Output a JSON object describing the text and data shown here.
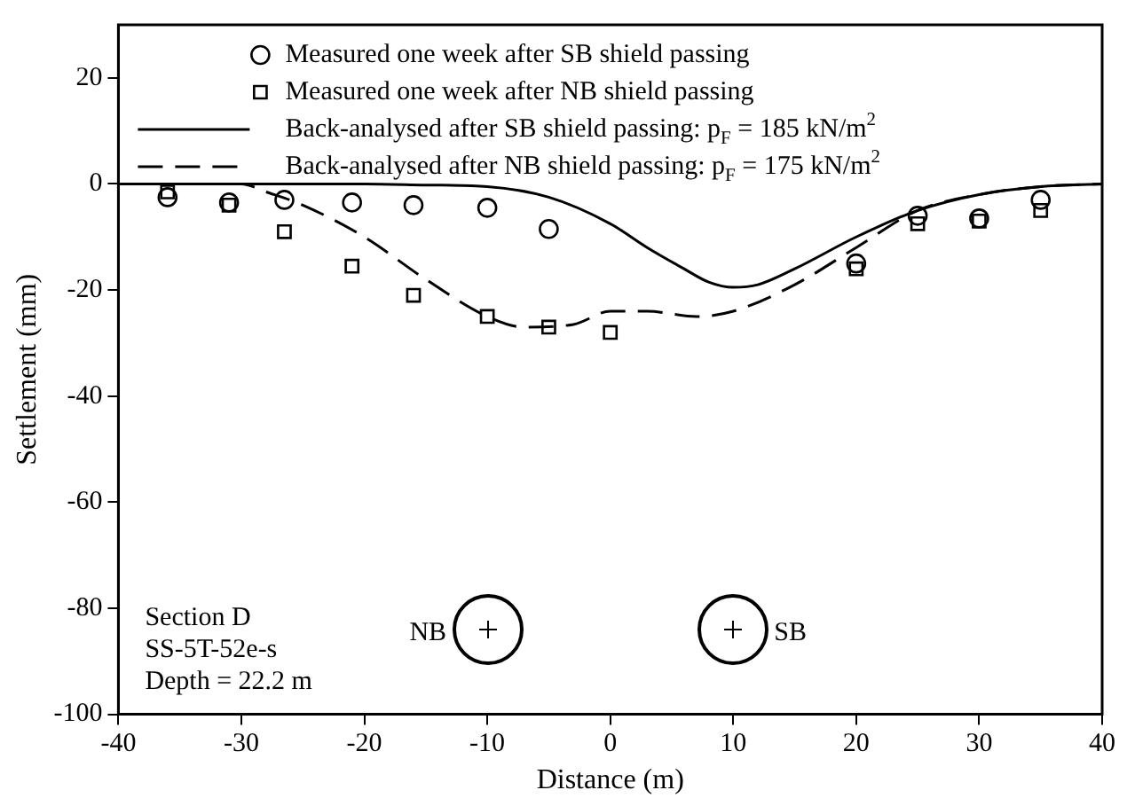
{
  "chart_data": {
    "type": "line",
    "xlabel": "Distance (m)",
    "ylabel": "Settlement (mm)",
    "xlim": [
      -40,
      40
    ],
    "xticks": [
      -40,
      -30,
      -20,
      -10,
      0,
      10,
      20,
      30,
      40
    ],
    "ylim": [
      -100,
      30
    ],
    "yticks": [
      -100,
      -80,
      -60,
      -40,
      -20,
      0,
      20
    ],
    "grid": false,
    "legend": "top",
    "series": [
      {
        "name": "Measured one week after SB shield passing",
        "type": "scatter",
        "marker": "circle",
        "color": "#000000",
        "x": [
          -36,
          -31,
          -26.5,
          -21,
          -16,
          -10,
          -5,
          20,
          25,
          30,
          35
        ],
        "values": [
          -2.5,
          -3.5,
          -3,
          -3.5,
          -4,
          -4.5,
          -8.5,
          -15,
          -6,
          -6.5,
          -3
        ]
      },
      {
        "name": "Measured one week after NB shield passing",
        "type": "scatter",
        "marker": "square",
        "color": "#000000",
        "x": [
          -36,
          -31,
          -26.5,
          -21,
          -16,
          -10,
          -5,
          0,
          20,
          25,
          30,
          35
        ],
        "values": [
          -1.5,
          -4,
          -9,
          -15.5,
          -21,
          -25,
          -27,
          -28,
          -16,
          -7.5,
          -7,
          -5
        ]
      },
      {
        "name": "Back-analysed after SB shield passing: p$_{F}$ = 185 kN/m$^{2}$",
        "line_style": "solid",
        "color": "#000000",
        "x": [
          -40,
          -30,
          -20,
          -15,
          -10,
          -5,
          0,
          3,
          6,
          8,
          10,
          12,
          15,
          20,
          25,
          30,
          35,
          40
        ],
        "values": [
          0,
          0,
          0,
          -0.2,
          -0.5,
          -2.5,
          -7.5,
          -12,
          -16,
          -18.5,
          -19.5,
          -19,
          -16,
          -10,
          -5,
          -2,
          -0.5,
          0
        ]
      },
      {
        "name": "Back-analysed after NB shield passing: p$_{F}$ = 175 kN/m$^{2}$",
        "line_style": "dashed",
        "color": "#000000",
        "x": [
          -40,
          -30,
          -28,
          -25,
          -20,
          -15,
          -10,
          -7,
          -3,
          0,
          3,
          7,
          10,
          15,
          20,
          25,
          30,
          35,
          40
        ],
        "values": [
          0,
          0,
          -1.5,
          -4,
          -10,
          -18,
          -25,
          -27,
          -26.5,
          -24,
          -24,
          -25,
          -24,
          -19,
          -12,
          -5,
          -2,
          -0.5,
          0
        ]
      }
    ],
    "annotations": [
      {
        "text": "NB",
        "x": -10,
        "y": -84
      },
      {
        "text": "SB",
        "x": 10,
        "y": -84
      },
      "Section D\nSS-5T-52e-s\nDepth = 22.2 m"
    ]
  }
}
